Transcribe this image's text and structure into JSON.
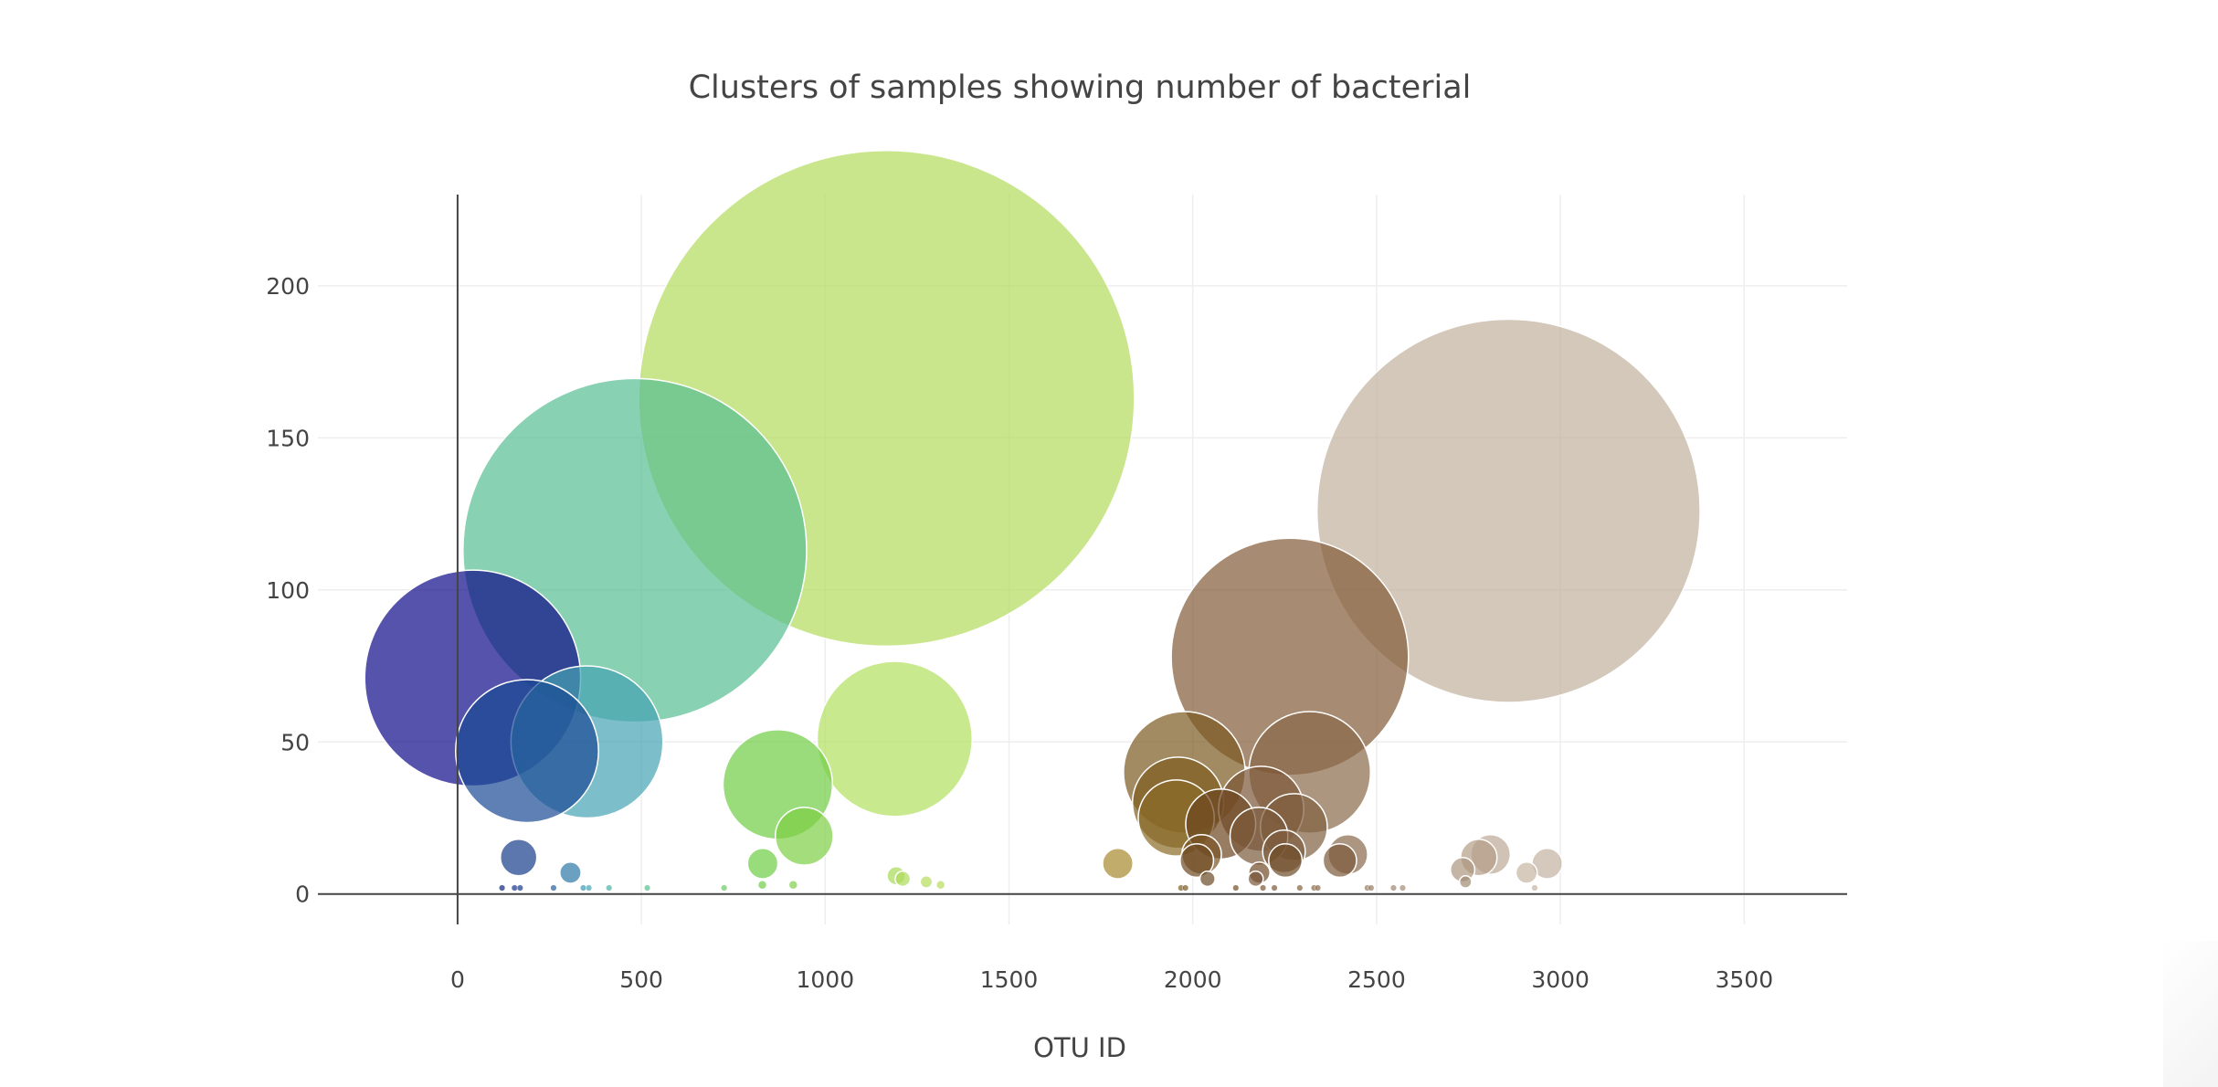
{
  "chart_data": {
    "type": "scatter",
    "variant": "bubble",
    "title": "Clusters of samples showing number of bacterial",
    "xlabel": "OTU ID",
    "ylabel": "",
    "xlim": [
      -380,
      3780
    ],
    "ylim": [
      -10,
      230
    ],
    "x_ticks": [
      0,
      500,
      1000,
      1500,
      2000,
      2500,
      3000,
      3500
    ],
    "y_ticks": [
      0,
      50,
      100,
      150,
      200
    ],
    "grid": true,
    "marker_opacity": 0.7,
    "marker_outline": "#ffffff",
    "colors": {
      "grid": "#eeeeee",
      "axis_line": "#444444",
      "text": "#444444"
    },
    "points": [
      {
        "x": 41,
        "y": 71,
        "size": 71,
        "color": "#0d0a87"
      },
      {
        "x": 189,
        "y": 47,
        "size": 47,
        "color": "#1a4a94"
      },
      {
        "x": 352,
        "y": 50,
        "size": 50,
        "color": "#45a2b2"
      },
      {
        "x": 482,
        "y": 113,
        "size": 113,
        "color": "#57bd93"
      },
      {
        "x": 1167,
        "y": 163,
        "size": 163,
        "color": "#b3dc5c"
      },
      {
        "x": 1189,
        "y": 51,
        "size": 51,
        "color": "#b1df5d"
      },
      {
        "x": 871,
        "y": 36,
        "size": 36,
        "color": "#6fcc45"
      },
      {
        "x": 943,
        "y": 19,
        "size": 19,
        "color": "#7dcf45"
      },
      {
        "x": 2264,
        "y": 78,
        "size": 78,
        "color": "#825a36"
      },
      {
        "x": 2859,
        "y": 126,
        "size": 126,
        "color": "#c1b09d"
      },
      {
        "x": 1977,
        "y": 40,
        "size": 40,
        "color": "#7a5a1f"
      },
      {
        "x": 2318,
        "y": 40,
        "size": 40,
        "color": "#8a6a49"
      },
      {
        "x": 1960,
        "y": 30,
        "size": 30,
        "color": "#7f5d20"
      },
      {
        "x": 1955,
        "y": 25,
        "size": 25,
        "color": "#8a6b27"
      },
      {
        "x": 2186,
        "y": 28,
        "size": 28,
        "color": "#7b5636"
      },
      {
        "x": 2076,
        "y": 23,
        "size": 23,
        "color": "#6c4620"
      },
      {
        "x": 2275,
        "y": 22,
        "size": 22,
        "color": "#806040"
      },
      {
        "x": 2180,
        "y": 19,
        "size": 19,
        "color": "#7a5a3a"
      },
      {
        "x": 2248,
        "y": 14,
        "size": 14,
        "color": "#7f5e3e"
      },
      {
        "x": 2252,
        "y": 11,
        "size": 11,
        "color": "#6e4c28"
      },
      {
        "x": 2422,
        "y": 13,
        "size": 13,
        "color": "#8a6a4b"
      },
      {
        "x": 2400,
        "y": 11,
        "size": 11,
        "color": "#7a593a"
      },
      {
        "x": 2024,
        "y": 13,
        "size": 13,
        "color": "#7a5424"
      },
      {
        "x": 2011,
        "y": 11,
        "size": 11,
        "color": "#6d4a22"
      },
      {
        "x": 1796,
        "y": 10,
        "size": 10,
        "color": "#a8892e"
      },
      {
        "x": 2181,
        "y": 7,
        "size": 7,
        "color": "#6f4b28"
      },
      {
        "x": 2171,
        "y": 5,
        "size": 5,
        "color": "#7a573a"
      },
      {
        "x": 2040,
        "y": 5,
        "size": 5,
        "color": "#6a4a25"
      },
      {
        "x": 2734,
        "y": 8,
        "size": 8,
        "color": "#ad967f"
      },
      {
        "x": 2778,
        "y": 12,
        "size": 12,
        "color": "#b39c86"
      },
      {
        "x": 2810,
        "y": 13,
        "size": 13,
        "color": "#bcaa95"
      },
      {
        "x": 2742,
        "y": 4,
        "size": 4,
        "color": "#a08a73"
      },
      {
        "x": 2908,
        "y": 7,
        "size": 7,
        "color": "#c6b5a3"
      },
      {
        "x": 2964,
        "y": 10,
        "size": 10,
        "color": "#c3b19f"
      },
      {
        "x": 166,
        "y": 12,
        "size": 12,
        "color": "#173c8c"
      },
      {
        "x": 307,
        "y": 7,
        "size": 7,
        "color": "#2d77a7"
      },
      {
        "x": 830,
        "y": 10,
        "size": 10,
        "color": "#6ccd45"
      },
      {
        "x": 1193,
        "y": 6,
        "size": 6,
        "color": "#a8da57"
      },
      {
        "x": 1211,
        "y": 5,
        "size": 5,
        "color": "#acdb59"
      },
      {
        "x": 1275,
        "y": 4,
        "size": 4,
        "color": "#b5dc5c"
      },
      {
        "x": 1314,
        "y": 3,
        "size": 3,
        "color": "#b9dd5f"
      },
      {
        "x": 913,
        "y": 3,
        "size": 3,
        "color": "#7ed048"
      },
      {
        "x": 829,
        "y": 3,
        "size": 3,
        "color": "#71cc45"
      },
      {
        "x": 121,
        "y": 2,
        "size": 2,
        "color": "#12287f"
      },
      {
        "x": 155,
        "y": 2,
        "size": 2,
        "color": "#15348a"
      },
      {
        "x": 170,
        "y": 2,
        "size": 2,
        "color": "#163a8c"
      },
      {
        "x": 261,
        "y": 2,
        "size": 2,
        "color": "#245f9c"
      },
      {
        "x": 342,
        "y": 2,
        "size": 2,
        "color": "#3e98b2"
      },
      {
        "x": 357,
        "y": 2,
        "size": 2,
        "color": "#47a4b0"
      },
      {
        "x": 412,
        "y": 2,
        "size": 2,
        "color": "#4fb0a2"
      },
      {
        "x": 516,
        "y": 2,
        "size": 2,
        "color": "#5bbf90"
      },
      {
        "x": 725,
        "y": 2,
        "size": 2,
        "color": "#6bc960"
      },
      {
        "x": 1968,
        "y": 2,
        "size": 2,
        "color": "#7e5d21"
      },
      {
        "x": 1980,
        "y": 2,
        "size": 2,
        "color": "#7a5a1f"
      },
      {
        "x": 2117,
        "y": 2,
        "size": 2,
        "color": "#735028"
      },
      {
        "x": 2191,
        "y": 2,
        "size": 2,
        "color": "#7a5735"
      },
      {
        "x": 2222,
        "y": 2,
        "size": 2,
        "color": "#7c5a3a"
      },
      {
        "x": 2291,
        "y": 2,
        "size": 2,
        "color": "#84623f"
      },
      {
        "x": 2330,
        "y": 2,
        "size": 2,
        "color": "#8a6a49"
      },
      {
        "x": 2340,
        "y": 2,
        "size": 2,
        "color": "#8c6c4c"
      },
      {
        "x": 2475,
        "y": 2,
        "size": 2,
        "color": "#967a60"
      },
      {
        "x": 2485,
        "y": 2,
        "size": 2,
        "color": "#987c62"
      },
      {
        "x": 2546,
        "y": 2,
        "size": 2,
        "color": "#a08670"
      },
      {
        "x": 2571,
        "y": 2,
        "size": 2,
        "color": "#a48a74"
      },
      {
        "x": 2930,
        "y": 2,
        "size": 2,
        "color": "#c4b4a2"
      }
    ]
  }
}
